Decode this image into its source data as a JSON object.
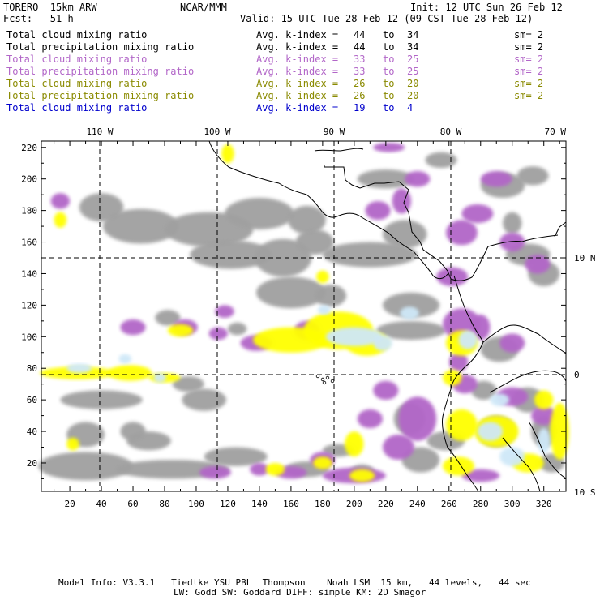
{
  "header": {
    "model": "TORERO  15km ARW",
    "center": "NCAR/MMM",
    "init": "Init: 12 UTC Sun 26 Feb 12",
    "fcst": "Fcst:   51 h",
    "valid": "Valid: 15 UTC Tue 28 Feb 12 (09 CST Tue 28 Feb 12)"
  },
  "legend": [
    {
      "field": "Total cloud mixing ratio",
      "kindex": "Avg. k-index = ",
      "from": "44",
      "to_word": "to",
      "to": "34",
      "sm": "sm= 2",
      "color": "#000000"
    },
    {
      "field": "Total precipitation mixing ratio",
      "kindex": "Avg. k-index = ",
      "from": "44",
      "to_word": "to",
      "to": "34",
      "sm": "sm= 2",
      "color": "#000000"
    },
    {
      "field": "Total cloud mixing ratio",
      "kindex": "Avg. k-index = ",
      "from": "33",
      "to_word": "to",
      "to": "25",
      "sm": "sm= 2",
      "color": "#b266c8"
    },
    {
      "field": "Total precipitation mixing ratio",
      "kindex": "Avg. k-index = ",
      "from": "33",
      "to_word": "to",
      "to": "25",
      "sm": "sm= 2",
      "color": "#b266c8"
    },
    {
      "field": "Total cloud mixing ratio",
      "kindex": "Avg. k-index = ",
      "from": "26",
      "to_word": "to",
      "to": "20",
      "sm": "sm= 2",
      "color": "#8a8a00"
    },
    {
      "field": "Total precipitation mixing ratio",
      "kindex": "Avg. k-index = ",
      "from": "26",
      "to_word": "to",
      "to": "20",
      "sm": "sm= 2",
      "color": "#8a8a00"
    },
    {
      "field": "Total cloud mixing ratio",
      "kindex": "Avg. k-index = ",
      "from": "19",
      "to_word": "to",
      "to": "4",
      "sm": "",
      "color": "#0000cc"
    }
  ],
  "axes": {
    "lon_labels": [
      "110 W",
      "100 W",
      "90 W",
      "80 W",
      "70 W"
    ],
    "lat_labels": [
      "10 N",
      "0",
      "10 S"
    ],
    "x_ticks": [
      "20",
      "40",
      "60",
      "80",
      "100",
      "120",
      "140",
      "160",
      "180",
      "200",
      "220",
      "240",
      "260",
      "280",
      "300",
      "320"
    ],
    "y_ticks": [
      "20",
      "40",
      "60",
      "80",
      "100",
      "120",
      "140",
      "160",
      "180",
      "200",
      "220"
    ]
  },
  "colors": {
    "gray_cloud": "#a0a0a0",
    "purple_cloud": "#b266c8",
    "yellow_cloud": "#ffff00",
    "light_blue_cloud": "#cfe8f8",
    "coast": "#000000"
  },
  "footer": {
    "line1": "Model Info: V3.3.1   Tiedtke YSU PBL  Thompson    Noah LSM  15 km,   44 levels,   44 sec",
    "line2": "LW: Godd SW: Goddard DIFF: simple KM: 2D Smagor"
  }
}
